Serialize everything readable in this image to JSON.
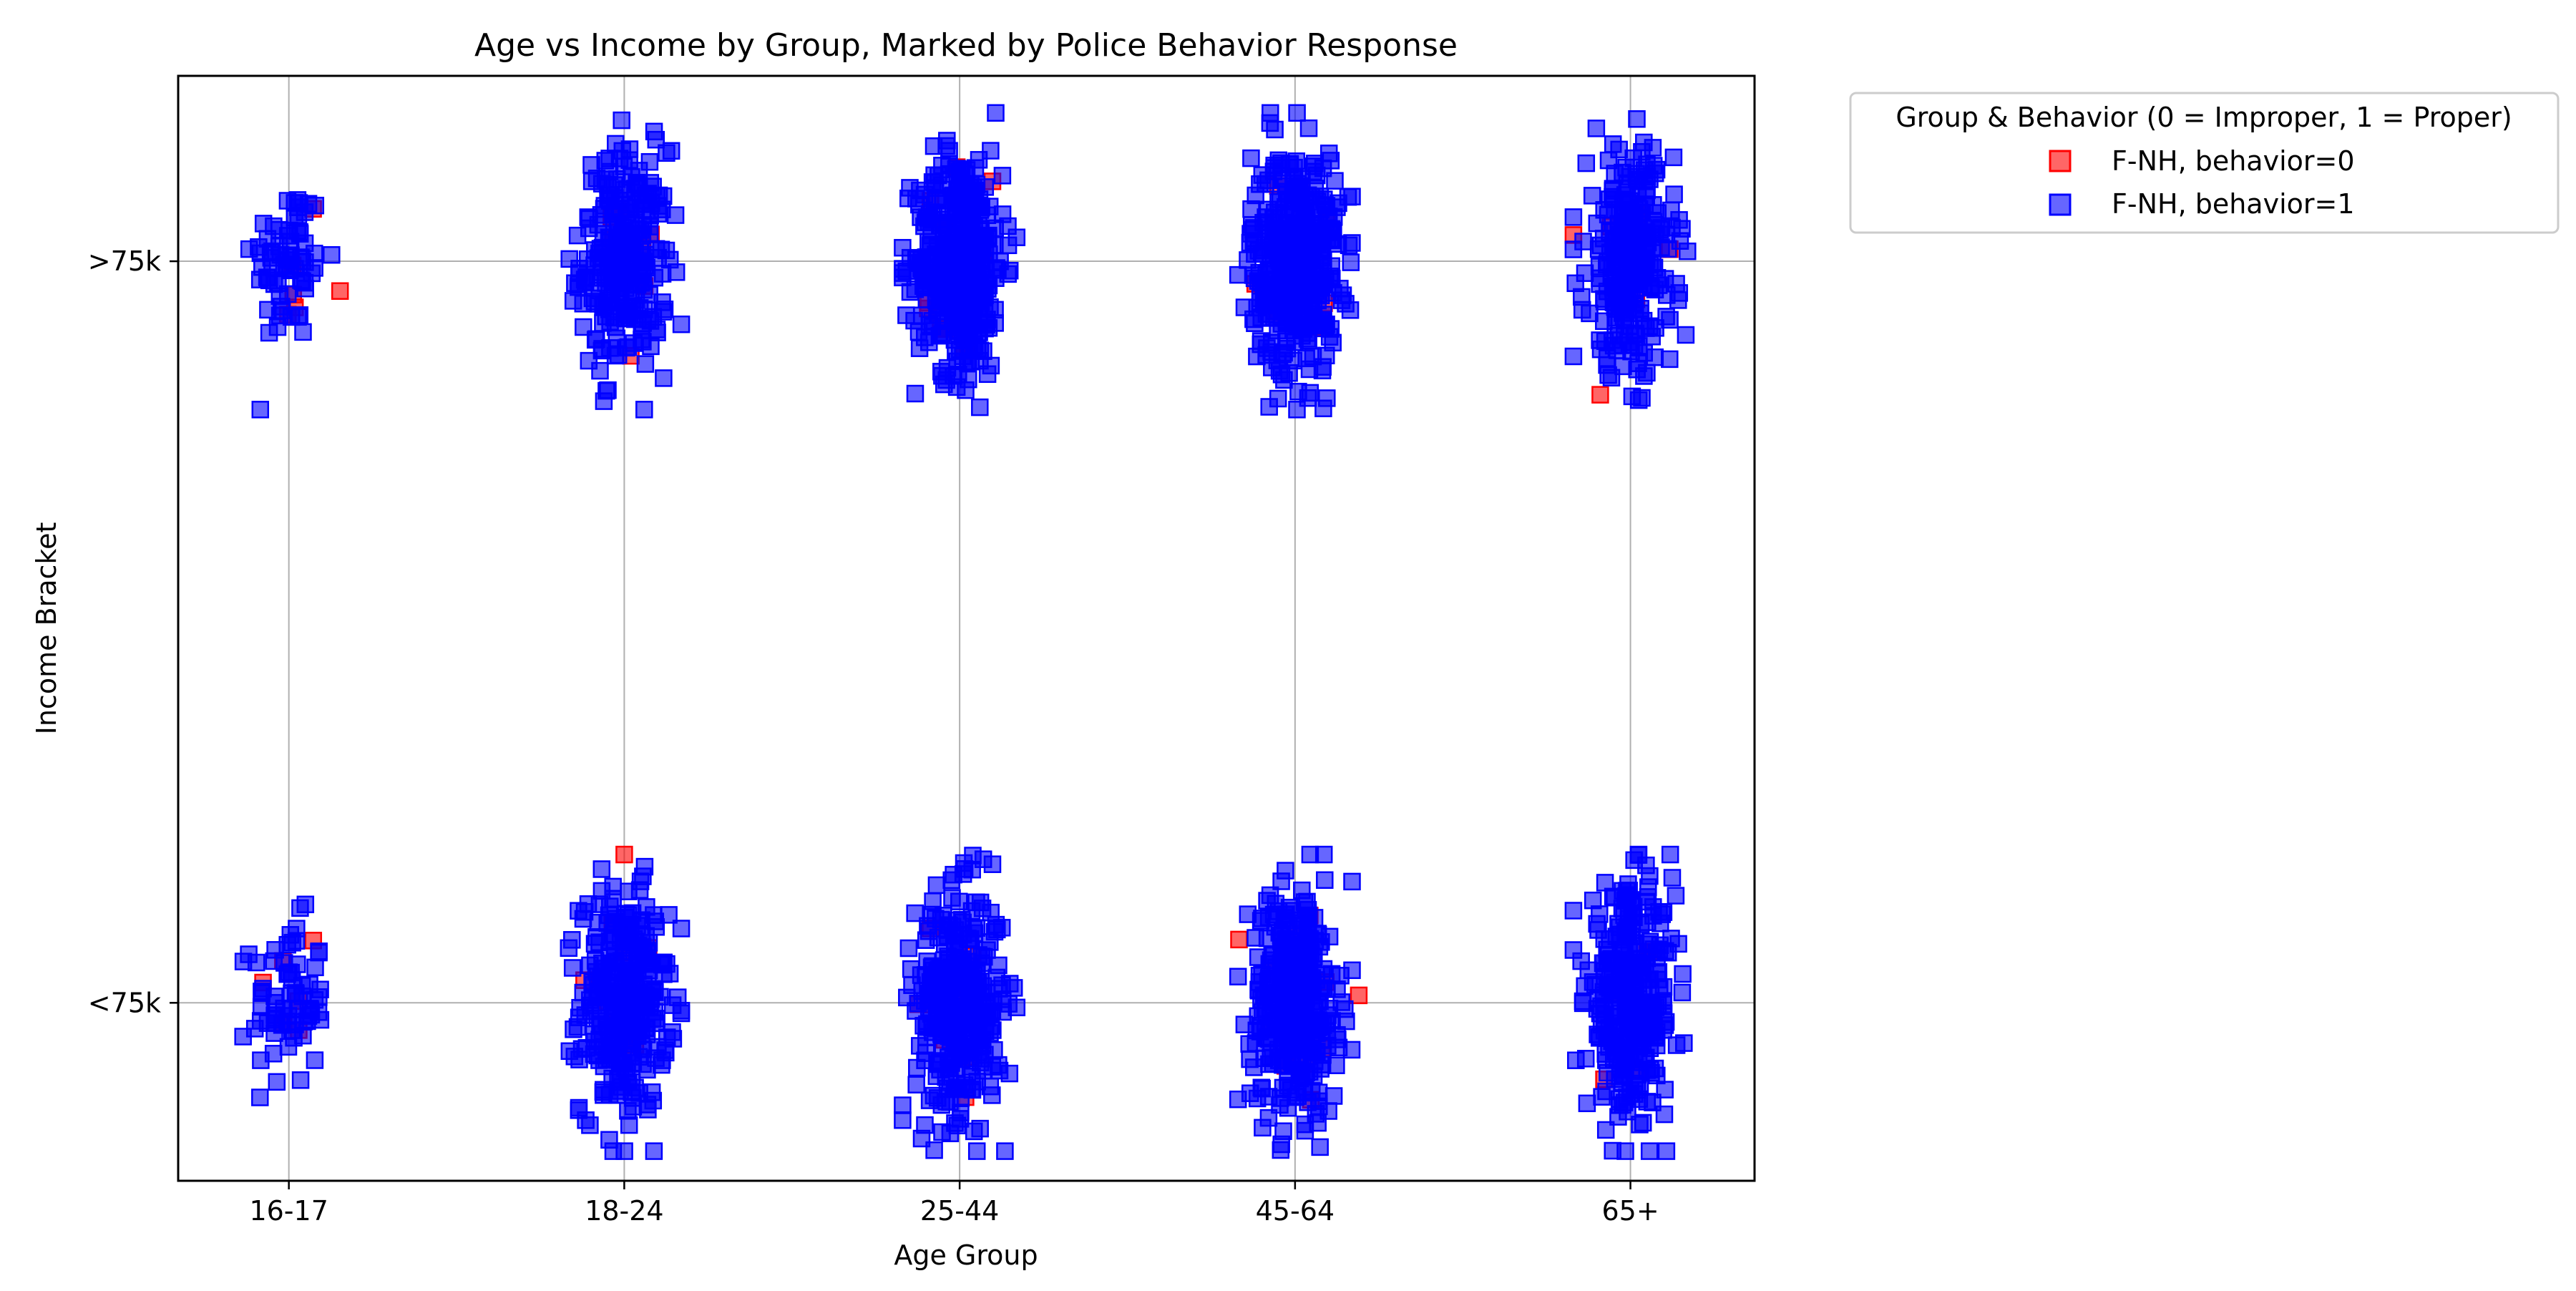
{
  "chart_data": {
    "type": "scatter",
    "title": "Age vs Income by Group, Marked by Police Behavior Response",
    "xlabel": "Age Group",
    "ylabel": "Income Bracket",
    "x_categories": [
      "16-17",
      "18-24",
      "25-44",
      "45-64",
      "65+"
    ],
    "y_categories": [
      "<75k",
      ">75k"
    ],
    "x_range": [
      -0.33,
      4.37
    ],
    "y_range": [
      -0.24,
      1.25
    ],
    "grid": true,
    "legend": {
      "title": "Group & Behavior (0 = Improper, 1 = Proper)",
      "placement": "outside-top-right"
    },
    "series": [
      {
        "name": "F-NH, behavior=0",
        "color": "#ff0000",
        "marker": "square",
        "note_points": "jittered around each category center",
        "groups": [
          {
            "x": "16-17",
            "y": ">75k",
            "count": 6
          },
          {
            "x": "16-17",
            "y": "<75k",
            "count": 6
          },
          {
            "x": "18-24",
            "y": ">75k",
            "count": 10
          },
          {
            "x": "18-24",
            "y": "<75k",
            "count": 12
          },
          {
            "x": "25-44",
            "y": ">75k",
            "count": 14
          },
          {
            "x": "25-44",
            "y": "<75k",
            "count": 14
          },
          {
            "x": "45-64",
            "y": ">75k",
            "count": 14
          },
          {
            "x": "45-64",
            "y": "<75k",
            "count": 14
          },
          {
            "x": "65+",
            "y": ">75k",
            "count": 10
          },
          {
            "x": "65+",
            "y": "<75k",
            "count": 10
          }
        ],
        "extra_points": [
          {
            "x": 3.91,
            "y": 0.82
          },
          {
            "x": 1.0,
            "y": 0.2
          },
          {
            "x": 3.19,
            "y": 0.01
          }
        ]
      },
      {
        "name": "F-NH, behavior=1",
        "color": "#0000ff",
        "marker": "square",
        "groups": [
          {
            "x": "16-17",
            "y": ">75k",
            "count": 70
          },
          {
            "x": "16-17",
            "y": "<75k",
            "count": 70
          },
          {
            "x": "18-24",
            "y": ">75k",
            "count": 260
          },
          {
            "x": "18-24",
            "y": "<75k",
            "count": 320
          },
          {
            "x": "25-44",
            "y": ">75k",
            "count": 420
          },
          {
            "x": "25-44",
            "y": "<75k",
            "count": 360
          },
          {
            "x": "45-64",
            "y": ">75k",
            "count": 420
          },
          {
            "x": "45-64",
            "y": "<75k",
            "count": 380
          },
          {
            "x": "65+",
            "y": ">75k",
            "count": 280
          },
          {
            "x": "65+",
            "y": "<75k",
            "count": 320
          }
        ]
      }
    ]
  }
}
